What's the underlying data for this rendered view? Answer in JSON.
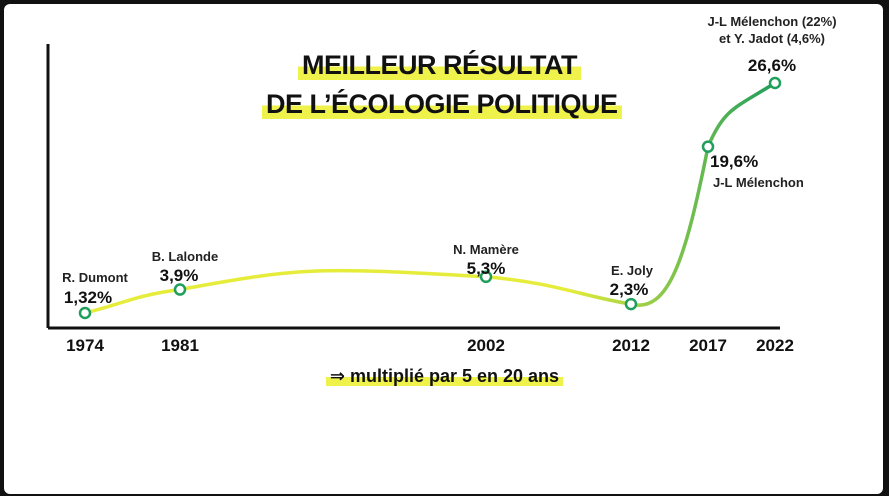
{
  "title_line1": "MEILLEUR RÉSULTAT",
  "title_line2": "DE L’ÉCOLOGIE POLITIQUE",
  "note": "⇒ multiplié par 5 en 20 ans",
  "colors": {
    "line_start": "#e6ec3a",
    "line_end": "#1f9e5c",
    "point_stroke": "#1f9e5c",
    "highlight": "#eef24a"
  },
  "chart_data": {
    "type": "line",
    "title": "MEILLEUR RÉSULTAT DE L’ÉCOLOGIE POLITIQUE",
    "x": [
      1974,
      1981,
      2002,
      2012,
      2017,
      2022
    ],
    "tick_labels": [
      "1974",
      "1981",
      "2002",
      "2012",
      "2017",
      "2022"
    ],
    "values": [
      1.32,
      3.9,
      5.3,
      2.3,
      19.6,
      26.6
    ],
    "value_labels": [
      "1,32%",
      "3,9%",
      "5,3%",
      "2,3%",
      "19,6%",
      "26,6%"
    ],
    "candidates": [
      "R. Dumont",
      "B. Lalonde",
      "N. Mamère",
      "E. Joly",
      "J-L Mélenchon",
      "J-L Mélenchon (22%)|et Y. Jadot (4,6%)"
    ],
    "ylim": [
      0,
      27
    ],
    "grid": false
  }
}
